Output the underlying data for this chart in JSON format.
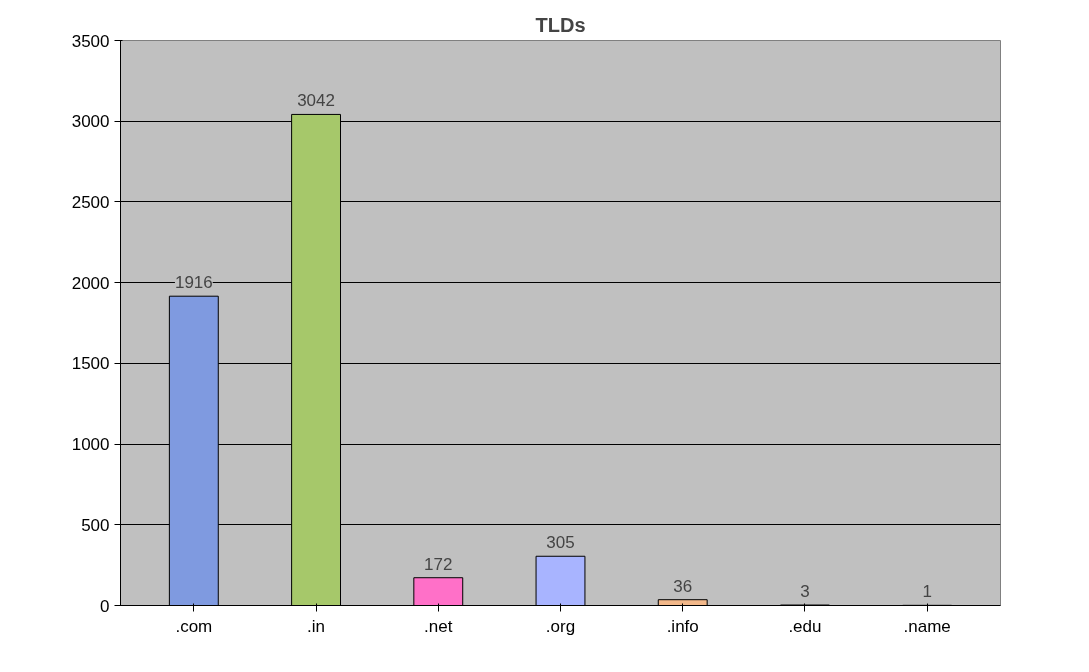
{
  "chart_data": {
    "type": "bar",
    "title": "TLDs",
    "categories": [
      ".com",
      ".in",
      ".net",
      ".org",
      ".info",
      ".edu",
      ".name"
    ],
    "values": [
      1916,
      3042,
      172,
      305,
      36,
      3,
      1
    ],
    "colors": [
      "#7f9ae0",
      "#a6c86a",
      "#ff70c8",
      "#a8b4ff",
      "#f2b88a",
      "#6a2a6a",
      "#8a90c8"
    ],
    "ylim": [
      0,
      3500
    ],
    "yticks": [
      0,
      500,
      1000,
      1500,
      2000,
      2500,
      3000,
      3500
    ],
    "grid": "y",
    "data_labels": true
  }
}
